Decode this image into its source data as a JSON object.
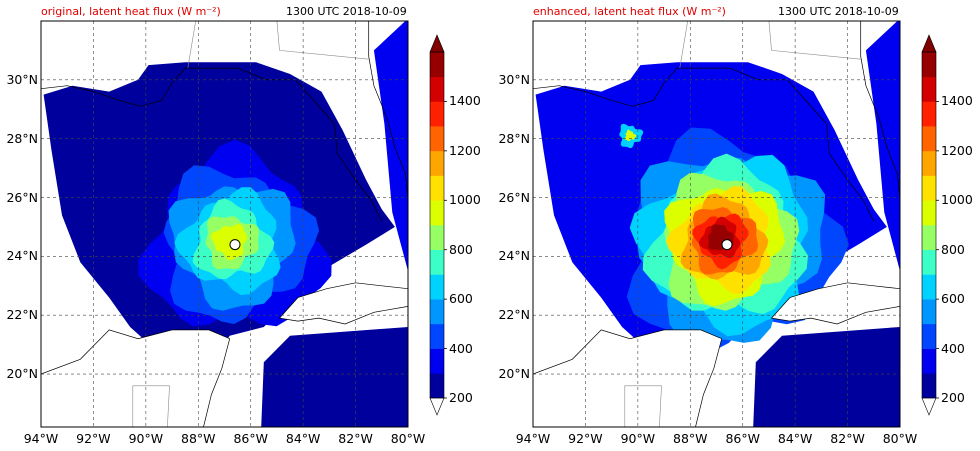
{
  "panels": [
    {
      "id": "left",
      "title": "original, latent heat flux (W m⁻²)",
      "time": "1300 UTC 2018-10-09"
    },
    {
      "id": "right",
      "title": "enhanced, latent heat flux (W m⁻²)",
      "time": "1300 UTC 2018-10-09"
    }
  ],
  "axes": {
    "lon_ticks": [
      "94°W",
      "92°W",
      "90°W",
      "88°W",
      "86°W",
      "84°W",
      "82°W",
      "80°W"
    ],
    "lat_ticks": [
      "30°N",
      "28°N",
      "26°N",
      "24°N",
      "22°N",
      "20°N"
    ]
  },
  "colorbar": {
    "ticks": [
      "1400",
      "1200",
      "1000",
      "800",
      "600",
      "400",
      "200"
    ],
    "colors": [
      "#00009c",
      "#0000f0",
      "#0046ff",
      "#0096ff",
      "#00d2ff",
      "#3cffc8",
      "#96ff64",
      "#dcff00",
      "#ffe100",
      "#ffa500",
      "#ff6400",
      "#ff2000",
      "#d20000",
      "#960000"
    ]
  },
  "chart_data": {
    "type": "heatmap",
    "variable": "latent heat flux",
    "units": "W m⁻²",
    "time": "1300 UTC 2018-10-09",
    "lon_range": [
      -94,
      -80
    ],
    "lat_range": [
      18.2,
      32
    ],
    "levels": [
      200,
      300,
      400,
      500,
      600,
      700,
      800,
      900,
      1000,
      1100,
      1200,
      1300,
      1400,
      1500
    ],
    "storm_center": {
      "lon": -86.6,
      "lat": 24.4
    },
    "panels": [
      {
        "name": "original",
        "peak_approx": 900,
        "background_level": 300
      },
      {
        "name": "enhanced",
        "peak_approx": 1500,
        "background_level": 400
      }
    ]
  }
}
